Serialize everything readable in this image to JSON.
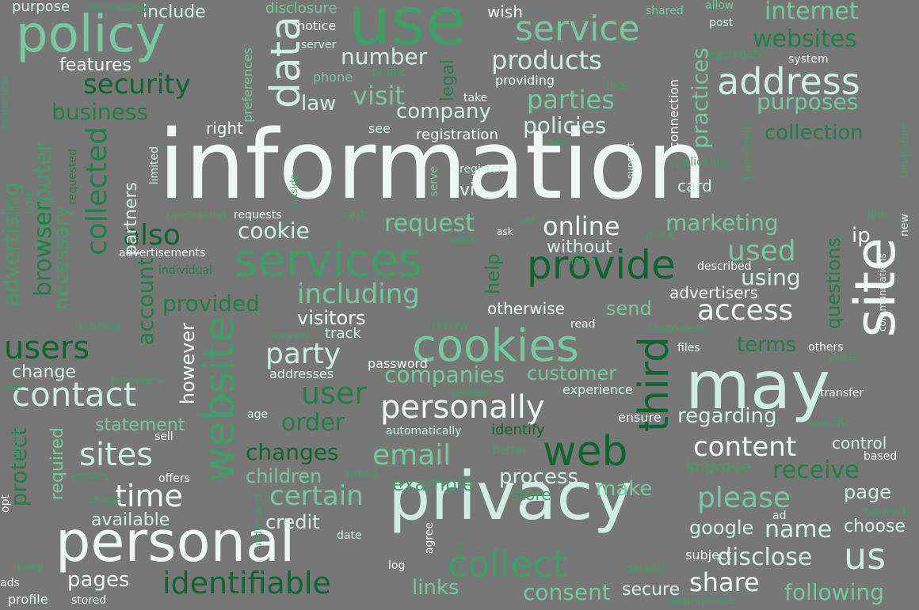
{
  "palette": {
    "background": "#777777",
    "white": "#eef7f4",
    "pale": "#cfeee3",
    "mint": "#74c9a1",
    "green": "#3f9e66",
    "forest": "#1f7f45",
    "dark": "#0d6630"
  },
  "words": [
    {
      "text": "information",
      "color": "white"
    },
    {
      "text": "use",
      "color": "green"
    },
    {
      "text": "may",
      "color": "pale"
    },
    {
      "text": "privacy",
      "color": "pale"
    },
    {
      "text": "personal",
      "color": "white"
    },
    {
      "text": "site",
      "color": "white"
    },
    {
      "text": "policy",
      "color": "mint"
    },
    {
      "text": "services",
      "color": "green"
    },
    {
      "text": "cookies",
      "color": "mint"
    },
    {
      "text": "website",
      "color": "green"
    },
    {
      "text": "web",
      "color": "dark"
    },
    {
      "text": "third",
      "color": "dark"
    },
    {
      "text": "data",
      "color": "pale"
    },
    {
      "text": "provide",
      "color": "dark"
    },
    {
      "text": "collect",
      "color": "green"
    },
    {
      "text": "address",
      "color": "pale"
    },
    {
      "text": "us",
      "color": "pale"
    },
    {
      "text": "service",
      "color": "mint"
    },
    {
      "text": "personally",
      "color": "white"
    },
    {
      "text": "contact",
      "color": "pale"
    },
    {
      "text": "users",
      "color": "dark"
    },
    {
      "text": "identifiable",
      "color": "dark"
    },
    {
      "text": "email",
      "color": "mint"
    },
    {
      "text": "please",
      "color": "mint"
    },
    {
      "text": "sites",
      "color": "pale"
    },
    {
      "text": "collected",
      "color": "forest"
    },
    {
      "text": "security",
      "color": "dark"
    },
    {
      "text": "access",
      "color": "white"
    },
    {
      "text": "products",
      "color": "pale"
    },
    {
      "text": "parties",
      "color": "mint"
    },
    {
      "text": "websites",
      "color": "forest"
    },
    {
      "text": "internet",
      "color": "mint"
    },
    {
      "text": "purposes",
      "color": "mint"
    },
    {
      "text": "used",
      "color": "mint"
    },
    {
      "text": "also",
      "color": "dark"
    },
    {
      "text": "time",
      "color": "white"
    },
    {
      "text": "user",
      "color": "forest"
    },
    {
      "text": "including",
      "color": "mint"
    },
    {
      "text": "content",
      "color": "white"
    },
    {
      "text": "party",
      "color": "pale"
    },
    {
      "text": "online",
      "color": "white"
    },
    {
      "text": "companies",
      "color": "mint"
    },
    {
      "text": "certain",
      "color": "mint"
    },
    {
      "text": "order",
      "color": "forest"
    },
    {
      "text": "share",
      "color": "white"
    },
    {
      "text": "name",
      "color": "pale"
    },
    {
      "text": "receive",
      "color": "forest"
    },
    {
      "text": "disclose",
      "color": "pale"
    },
    {
      "text": "visit",
      "color": "mint"
    },
    {
      "text": "business",
      "color": "forest"
    },
    {
      "text": "computer",
      "color": "green"
    },
    {
      "text": "browser",
      "color": "forest"
    },
    {
      "text": "advertising",
      "color": "green"
    },
    {
      "text": "account",
      "color": "forest"
    },
    {
      "text": "protect",
      "color": "forest"
    },
    {
      "text": "number",
      "color": "pale"
    },
    {
      "text": "marketing",
      "color": "mint"
    },
    {
      "text": "cookie",
      "color": "pale"
    },
    {
      "text": "request",
      "color": "mint"
    },
    {
      "text": "policies",
      "color": "pale"
    },
    {
      "text": "company",
      "color": "pale"
    },
    {
      "text": "collection",
      "color": "forest"
    },
    {
      "text": "practices",
      "color": "mint"
    },
    {
      "text": "changes",
      "color": "dark"
    },
    {
      "text": "provided",
      "color": "forest"
    },
    {
      "text": "using",
      "color": "pale"
    },
    {
      "text": "terms",
      "color": "forest"
    },
    {
      "text": "consent",
      "color": "mint"
    },
    {
      "text": "links",
      "color": "mint"
    },
    {
      "text": "following",
      "color": "mint"
    },
    {
      "text": "pages",
      "color": "white"
    },
    {
      "text": "process",
      "color": "pale"
    },
    {
      "text": "example",
      "color": "green"
    },
    {
      "text": "children",
      "color": "mint"
    },
    {
      "text": "credit",
      "color": "pale"
    },
    {
      "text": "make",
      "color": "mint"
    },
    {
      "text": "page",
      "color": "pale"
    },
    {
      "text": "choose",
      "color": "pale"
    },
    {
      "text": "google",
      "color": "pale"
    },
    {
      "text": "regarding",
      "color": "pale"
    },
    {
      "text": "however",
      "color": "white"
    },
    {
      "text": "customer",
      "color": "mint"
    },
    {
      "text": "send",
      "color": "mint"
    },
    {
      "text": "visitors",
      "color": "white"
    },
    {
      "text": "without",
      "color": "pale"
    },
    {
      "text": "questions",
      "color": "forest"
    },
    {
      "text": "ip",
      "color": "white"
    },
    {
      "text": "secure",
      "color": "pale"
    },
    {
      "text": "available",
      "color": "pale"
    },
    {
      "text": "required",
      "color": "mint"
    },
    {
      "text": "statement",
      "color": "mint"
    },
    {
      "text": "change",
      "color": "pale"
    },
    {
      "text": "necessary",
      "color": "green"
    },
    {
      "text": "partners",
      "color": "pale"
    },
    {
      "text": "advertisers",
      "color": "white"
    },
    {
      "text": "otherwise",
      "color": "white"
    },
    {
      "text": "law",
      "color": "pale"
    },
    {
      "text": "legal",
      "color": "forest"
    },
    {
      "text": "help",
      "color": "forest"
    },
    {
      "text": "card",
      "color": "pale"
    },
    {
      "text": "via",
      "color": "white"
    },
    {
      "text": "features",
      "color": "white"
    },
    {
      "text": "include",
      "color": "pale"
    },
    {
      "text": "purpose",
      "color": "pale"
    },
    {
      "text": "right",
      "color": "white"
    },
    {
      "text": "registration",
      "color": "white"
    },
    {
      "text": "providing",
      "color": "white"
    },
    {
      "text": "control",
      "color": "pale"
    },
    {
      "text": "store",
      "color": "green"
    },
    {
      "text": "improve",
      "color": "green"
    },
    {
      "text": "identify",
      "color": "dark"
    },
    {
      "text": "experience",
      "color": "pale"
    },
    {
      "text": "ensure",
      "color": "white"
    },
    {
      "text": "track",
      "color": "pale"
    },
    {
      "text": "addresses",
      "color": "pale"
    },
    {
      "text": "password",
      "color": "white"
    },
    {
      "text": "wish",
      "color": "white"
    },
    {
      "text": "disclosure",
      "color": "mint"
    },
    {
      "text": "notice",
      "color": "white"
    },
    {
      "text": "post",
      "color": "pale"
    },
    {
      "text": "system",
      "color": "white"
    },
    {
      "text": "preferences",
      "color": "mint"
    },
    {
      "text": "responsible",
      "color": "green"
    },
    {
      "text": "technology",
      "color": "green"
    },
    {
      "text": "shared",
      "color": "mint"
    },
    {
      "text": "allow",
      "color": "mint"
    },
    {
      "text": "server",
      "color": "pale"
    },
    {
      "text": "phone",
      "color": "mint"
    },
    {
      "text": "public",
      "color": "green"
    },
    {
      "text": "aggregate",
      "color": "green"
    },
    {
      "text": "like",
      "color": "green"
    },
    {
      "text": "take",
      "color": "white"
    },
    {
      "text": "see",
      "color": "pale"
    },
    {
      "text": "uses",
      "color": "green"
    },
    {
      "text": "connection",
      "color": "white"
    },
    {
      "text": "protection",
      "color": "green"
    },
    {
      "text": "telephone",
      "color": "green"
    },
    {
      "text": "applicable",
      "color": "green"
    },
    {
      "text": "support",
      "color": "pale"
    },
    {
      "text": "register",
      "color": "pale"
    },
    {
      "text": "serve",
      "color": "mint"
    },
    {
      "text": "requested",
      "color": "forest"
    },
    {
      "text": "limited",
      "color": "pale"
    },
    {
      "text": "processing",
      "color": "green"
    },
    {
      "text": "requests",
      "color": "white"
    },
    {
      "text": "outside",
      "color": "green"
    },
    {
      "text": "part",
      "color": "green"
    },
    {
      "text": "type",
      "color": "green"
    },
    {
      "text": "advertisements",
      "color": "white"
    },
    {
      "text": "individual",
      "color": "forest"
    },
    {
      "text": "rights",
      "color": "green"
    },
    {
      "text": "set",
      "color": "green"
    },
    {
      "text": "ask",
      "color": "white"
    },
    {
      "text": "place",
      "color": "green"
    },
    {
      "text": "link",
      "color": "green"
    },
    {
      "text": "new",
      "color": "pale"
    },
    {
      "text": "communications",
      "color": "pale"
    },
    {
      "text": "form",
      "color": "green"
    },
    {
      "text": "described",
      "color": "white"
    },
    {
      "text": "read",
      "color": "white"
    },
    {
      "text": "customers",
      "color": "green"
    },
    {
      "text": "files",
      "color": "white"
    },
    {
      "text": "others",
      "color": "white"
    },
    {
      "text": "unless",
      "color": "green"
    },
    {
      "text": "product",
      "color": "green"
    },
    {
      "text": "servers",
      "color": "green"
    },
    {
      "text": "review",
      "color": "green"
    },
    {
      "text": "interest",
      "color": "green"
    },
    {
      "text": "providers",
      "color": "green"
    },
    {
      "text": "one",
      "color": "green"
    },
    {
      "text": "related",
      "color": "green"
    },
    {
      "text": "transfer",
      "color": "white"
    },
    {
      "text": "age",
      "color": "pale"
    },
    {
      "text": "sell",
      "color": "white"
    },
    {
      "text": "submit",
      "color": "green"
    },
    {
      "text": "automatically",
      "color": "pale"
    },
    {
      "text": "specific",
      "color": "green"
    },
    {
      "text": "based",
      "color": "white"
    },
    {
      "text": "better",
      "color": "green"
    },
    {
      "text": "update",
      "color": "green"
    },
    {
      "text": "offers",
      "color": "white"
    },
    {
      "text": "would",
      "color": "green"
    },
    {
      "text": "usage",
      "color": "green"
    },
    {
      "text": "opt",
      "color": "white"
    },
    {
      "text": "understand",
      "color": "green"
    },
    {
      "text": "date",
      "color": "pale"
    },
    {
      "text": "ad",
      "color": "pale"
    },
    {
      "text": "network",
      "color": "green"
    },
    {
      "text": "agree",
      "color": "white"
    },
    {
      "text": "within",
      "color": "green"
    },
    {
      "text": "keep",
      "color": "green"
    },
    {
      "text": "log",
      "color": "white"
    },
    {
      "text": "details",
      "color": "green"
    },
    {
      "text": "subject",
      "color": "white"
    },
    {
      "text": "ads",
      "color": "white"
    },
    {
      "text": "profile",
      "color": "white"
    },
    {
      "text": "stored",
      "color": "white"
    },
    {
      "text": "appropriate",
      "color": "green"
    },
    {
      "text": "activities",
      "color": "green"
    }
  ]
}
